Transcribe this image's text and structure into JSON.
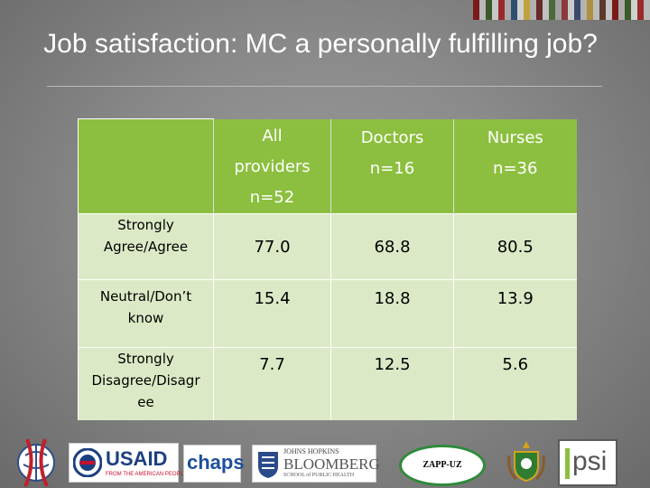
{
  "slide": {
    "title": "Job satisfaction: MC a personally fulfilling job?"
  },
  "table": {
    "columns": [
      {
        "line1": "All",
        "line2": "providers",
        "line3": "n=52"
      },
      {
        "line1": "Doctors",
        "line2": "n=16"
      },
      {
        "line1": "Nurses",
        "line2": "n=36"
      }
    ],
    "rows": [
      {
        "label_l1": "Strongly",
        "label_l2": "Agree/Agree",
        "values": [
          "77.0",
          "68.8",
          "80.5"
        ]
      },
      {
        "label_l1": "Neutral/Don’t",
        "label_l2": "know",
        "values": [
          "15.4",
          "18.8",
          "13.9"
        ]
      },
      {
        "label_l1": "Strongly",
        "label_l2": "Disagree/Disagr",
        "label_l3": "ee",
        "values": [
          "7.7",
          "12.5",
          "5.6"
        ]
      }
    ]
  },
  "logos": {
    "usaid": "USAID",
    "usaid_sub": "FROM THE AMERICAN PEOPLE",
    "chaps": "chaps",
    "jhu_l1": "JOHNS HOPKINS",
    "jhu_l2": "BLOOMBERG",
    "jhu_l3": "SCHOOL of PUBLIC HEALTH",
    "zapp": "ZAPP-UZ",
    "psi": "psi"
  },
  "colors": {
    "header_green": "#8cbf3f",
    "cell_green": "#dce9c6",
    "background": "#8a8a8a"
  }
}
